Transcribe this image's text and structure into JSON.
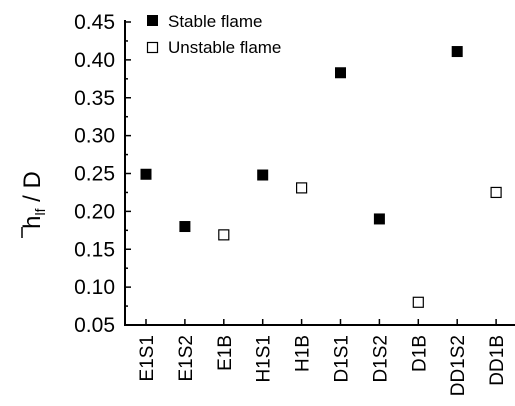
{
  "chart_data": {
    "type": "scatter",
    "categories": [
      "E1S1",
      "E1S2",
      "E1B",
      "H1S1",
      "H1B",
      "D1S1",
      "D1S2",
      "D1B",
      "DD1S2",
      "DD1B"
    ],
    "ylabel_main": "h",
    "ylabel_sub": "lf",
    "ylabel_rest": " / D",
    "ylim": [
      0.05,
      0.45
    ],
    "yticks": [
      "0.05",
      "0.10",
      "0.15",
      "0.20",
      "0.25",
      "0.30",
      "0.35",
      "0.40",
      "0.45"
    ],
    "series": [
      {
        "name": "Stable flame",
        "marker": "filled-square",
        "color": "#000000",
        "points": [
          {
            "x": "E1S1",
            "y": 0.249
          },
          {
            "x": "E1S2",
            "y": 0.18
          },
          {
            "x": "H1S1",
            "y": 0.248
          },
          {
            "x": "D1S1",
            "y": 0.383
          },
          {
            "x": "D1S2",
            "y": 0.19
          },
          {
            "x": "DD1S2",
            "y": 0.411
          }
        ]
      },
      {
        "name": "Unstable flame",
        "marker": "open-square",
        "color": "#000000",
        "points": [
          {
            "x": "E1B",
            "y": 0.169
          },
          {
            "x": "H1B",
            "y": 0.231
          },
          {
            "x": "D1B",
            "y": 0.08
          },
          {
            "x": "DD1B",
            "y": 0.225
          }
        ]
      }
    ],
    "legend_position": "top-left",
    "grid": false
  }
}
